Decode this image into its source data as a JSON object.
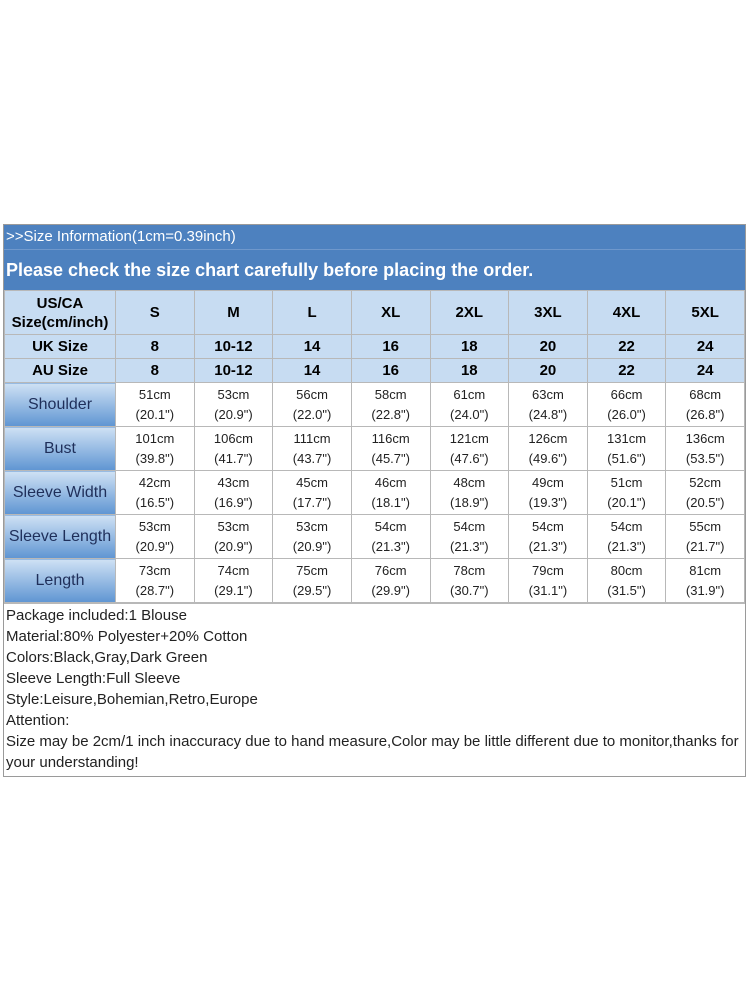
{
  "header": {
    "info": ">>Size Information(1cm=0.39inch)",
    "warning": "Please check the size chart carefully before placing the order."
  },
  "sizes": {
    "us_label_line1": "US/CA",
    "us_label_line2": "Size(cm/inch)",
    "us": [
      "S",
      "M",
      "L",
      "XL",
      "2XL",
      "3XL",
      "4XL",
      "5XL"
    ],
    "uk_label": "UK Size",
    "uk": [
      "8",
      "10-12",
      "14",
      "16",
      "18",
      "20",
      "22",
      "24"
    ],
    "au_label": "AU Size",
    "au": [
      "8",
      "10-12",
      "14",
      "16",
      "18",
      "20",
      "22",
      "24"
    ]
  },
  "measurements": [
    {
      "label": "Shoulder",
      "cm": [
        "51cm",
        "53cm",
        "56cm",
        "58cm",
        "61cm",
        "63cm",
        "66cm",
        "68cm"
      ],
      "inch": [
        "(20.1\")",
        "(20.9\")",
        "(22.0\")",
        "(22.8\")",
        "(24.0\")",
        "(24.8\")",
        "(26.0\")",
        "(26.8\")"
      ]
    },
    {
      "label": "Bust",
      "cm": [
        "101cm",
        "106cm",
        "111cm",
        "116cm",
        "121cm",
        "126cm",
        "131cm",
        "136cm"
      ],
      "inch": [
        "(39.8\")",
        "(41.7\")",
        "(43.7\")",
        "(45.7\")",
        "(47.6\")",
        "(49.6\")",
        "(51.6\")",
        "(53.5\")"
      ]
    },
    {
      "label": "Sleeve Width",
      "cm": [
        "42cm",
        "43cm",
        "45cm",
        "46cm",
        "48cm",
        "49cm",
        "51cm",
        "52cm"
      ],
      "inch": [
        "(16.5\")",
        "(16.9\")",
        "(17.7\")",
        "(18.1\")",
        "(18.9\")",
        "(19.3\")",
        "(20.1\")",
        "(20.5\")"
      ]
    },
    {
      "label": "Sleeve Length",
      "cm": [
        "53cm",
        "53cm",
        "53cm",
        "54cm",
        "54cm",
        "54cm",
        "54cm",
        "55cm"
      ],
      "inch": [
        "(20.9\")",
        "(20.9\")",
        "(20.9\")",
        "(21.3\")",
        "(21.3\")",
        "(21.3\")",
        "(21.3\")",
        "(21.7\")"
      ]
    },
    {
      "label": "Length",
      "cm": [
        "73cm",
        "74cm",
        "75cm",
        "76cm",
        "78cm",
        "79cm",
        "80cm",
        "81cm"
      ],
      "inch": [
        "(28.7\")",
        "(29.1\")",
        "(29.5\")",
        "(29.9\")",
        "(30.7\")",
        "(31.1\")",
        "(31.5\")",
        "(31.9\")"
      ]
    }
  ],
  "notes": {
    "package": "Package included:1 Blouse",
    "material": "Material:80% Polyester+20% Cotton",
    "colors": "Colors:Black,Gray,Dark Green",
    "sleeve": "Sleeve Length:Full Sleeve",
    "style": "Style:Leisure,Bohemian,Retro,Europe",
    "attention": "Attention:",
    "disclaimer": "Size may be 2cm/1 inch inaccuracy due to hand measure,Color may be little different due to monitor,thanks for your understanding!"
  },
  "colors": {
    "header_blue": "#4d81bf",
    "size_row_blue": "#c7dcf2",
    "label_gradient_dark": "#5f95d2"
  }
}
